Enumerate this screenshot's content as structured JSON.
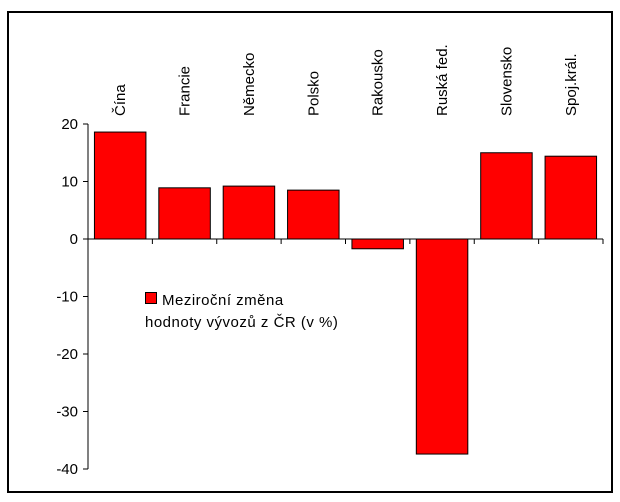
{
  "chart_data": {
    "type": "bar",
    "categories": [
      "Čína",
      "Francie",
      "Německo",
      "Polsko",
      "Rakousko",
      "Ruská fed.",
      "Slovensko",
      "Spoj.král."
    ],
    "series": [
      {
        "name": "Meziroční změna hodnoty vývozů z ČR (v %)",
        "color": "#ff0000",
        "values": [
          18.6,
          8.9,
          9.2,
          8.5,
          -1.7,
          -37.4,
          15.0,
          14.4
        ]
      }
    ],
    "ylim": [
      -40,
      20
    ],
    "yticks": [
      -40,
      -30,
      -20,
      -10,
      0,
      10,
      20
    ],
    "grid": false,
    "legend": "inside-left"
  }
}
